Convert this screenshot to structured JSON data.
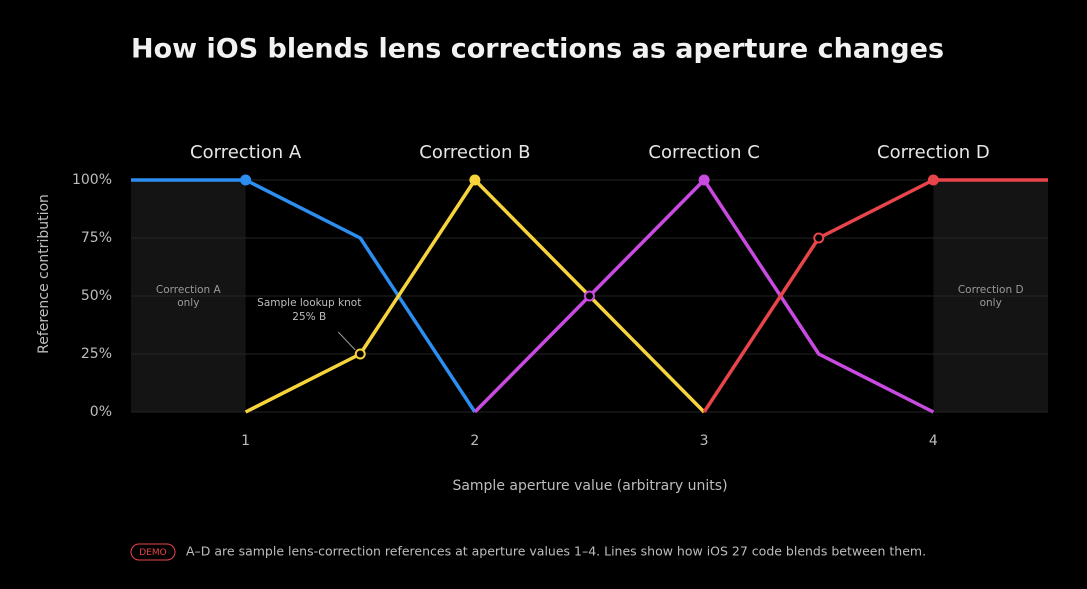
{
  "chart_data": {
    "type": "line",
    "title": "How iOS blends lens corrections as aperture changes",
    "x_label": "Sample aperture value (arbitrary units)",
    "y_label": "Reference contribution",
    "xlim": [
      0.5,
      4.5
    ],
    "xticks": [
      1,
      2,
      3,
      4
    ],
    "ylim": [
      0,
      100
    ],
    "yticks": [
      {
        "value": 0,
        "label": "0%"
      },
      {
        "value": 25,
        "label": "25%"
      },
      {
        "value": 50,
        "label": "50%"
      },
      {
        "value": 75,
        "label": "75%"
      },
      {
        "value": 100,
        "label": "100%"
      }
    ],
    "grid": true,
    "references": [
      {
        "label": "Correction A",
        "x": 1
      },
      {
        "label": "Correction B",
        "x": 2
      },
      {
        "label": "Correction C",
        "x": 3
      },
      {
        "label": "Correction D",
        "x": 4
      }
    ],
    "regions": [
      {
        "lines": [
          "Correction A",
          "only"
        ],
        "x": [
          0.5,
          1
        ]
      },
      {
        "lines": [
          "Correction D",
          "only"
        ],
        "x": [
          4,
          4.5
        ]
      }
    ],
    "series": [
      {
        "name": "Correction A",
        "color": "#2b8ef0",
        "x": [
          0.5,
          1,
          1.5,
          2
        ],
        "values": [
          100,
          100,
          75,
          0
        ],
        "points": [
          "none",
          "filled",
          "none",
          "none"
        ]
      },
      {
        "name": "Correction B",
        "color": "#f7d43c",
        "x": [
          1,
          1.5,
          2,
          2.5,
          3
        ],
        "values": [
          0,
          25,
          100,
          50,
          0
        ],
        "points": [
          "none",
          "open",
          "filled",
          "none",
          "none"
        ]
      },
      {
        "name": "Correction C",
        "color": "#c84ae0",
        "x": [
          2,
          2.5,
          3,
          3.5,
          4
        ],
        "values": [
          0,
          50,
          100,
          25,
          0
        ],
        "points": [
          "none",
          "open",
          "filled",
          "none",
          "none"
        ]
      },
      {
        "name": "Correction D",
        "color": "#e8454a",
        "x": [
          3,
          3.5,
          4,
          4.5
        ],
        "values": [
          0,
          75,
          100,
          100
        ],
        "points": [
          "none",
          "open",
          "filled",
          "none"
        ]
      }
    ],
    "annotation": {
      "lines": [
        "Sample lookup knot",
        "25% B"
      ],
      "x": 1.5,
      "y": 25
    },
    "footer": {
      "badge": "DEMO",
      "text": "A–D are sample lens-correction references at aperture values 1–4. Lines show how iOS 27 code blends between them."
    }
  }
}
